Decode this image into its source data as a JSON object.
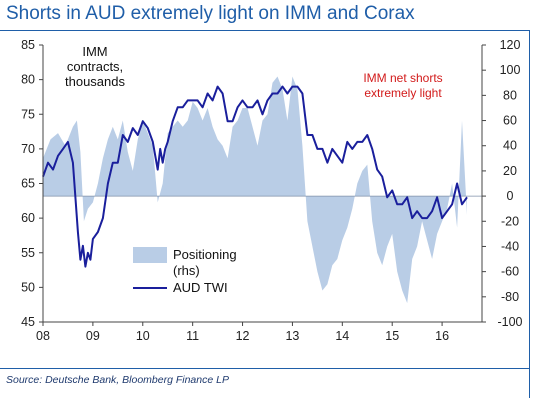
{
  "header": {
    "title": "Shorts in AUD extremely light on IMM and Corax",
    "source": "Source: Deutsche Bank, Bloomberg Finance LP"
  },
  "colors": {
    "title": "#1f5ea8",
    "positioning_fill": "#b9cde6",
    "twi_line": "#1a1f9c",
    "annotation_red": "#d21a1a",
    "axis": "#444444"
  },
  "chart_data": {
    "type": "area",
    "title": "Shorts in AUD extremely light on IMM and Corax",
    "x_range": [
      2008.0,
      2016.8
    ],
    "x_ticks": [
      {
        "value": 2008,
        "label": "08"
      },
      {
        "value": 2009,
        "label": "09"
      },
      {
        "value": 2010,
        "label": "10"
      },
      {
        "value": 2011,
        "label": "11"
      },
      {
        "value": 2012,
        "label": "12"
      },
      {
        "value": 2013,
        "label": "13"
      },
      {
        "value": 2014,
        "label": "14"
      },
      {
        "value": 2015,
        "label": "15"
      },
      {
        "value": 2016,
        "label": "16"
      }
    ],
    "y_left": {
      "range": [
        45,
        85
      ],
      "ticks": [
        45,
        50,
        55,
        60,
        65,
        70,
        75,
        80,
        85
      ]
    },
    "y_right": {
      "range": [
        -100,
        120
      ],
      "ticks": [
        -100,
        -80,
        -60,
        -40,
        -20,
        0,
        20,
        40,
        60,
        80,
        100,
        120
      ]
    },
    "annotations": {
      "left_unit": "IMM\ncontracts,\nthousands",
      "right_note": "IMM net shorts\nextremely light"
    },
    "legend": {
      "placement": "lower-left",
      "items": [
        {
          "label": "Positioning\n(rhs)",
          "kind": "area"
        },
        {
          "label": "AUD TWI",
          "kind": "line"
        }
      ]
    },
    "series": [
      {
        "name": "Positioning",
        "axis": "right",
        "type": "area",
        "x": [
          2008.0,
          2008.15,
          2008.3,
          2008.45,
          2008.6,
          2008.68,
          2008.75,
          2008.82,
          2008.9,
          2009.0,
          2009.1,
          2009.2,
          2009.3,
          2009.4,
          2009.5,
          2009.6,
          2009.7,
          2009.8,
          2009.9,
          2010.0,
          2010.1,
          2010.2,
          2010.3,
          2010.4,
          2010.5,
          2010.6,
          2010.7,
          2010.8,
          2010.9,
          2011.0,
          2011.1,
          2011.2,
          2011.3,
          2011.4,
          2011.5,
          2011.6,
          2011.7,
          2011.8,
          2011.9,
          2012.0,
          2012.1,
          2012.2,
          2012.3,
          2012.4,
          2012.5,
          2012.6,
          2012.7,
          2012.8,
          2012.9,
          2013.0,
          2013.1,
          2013.2,
          2013.3,
          2013.4,
          2013.5,
          2013.6,
          2013.7,
          2013.8,
          2013.9,
          2014.0,
          2014.1,
          2014.2,
          2014.3,
          2014.4,
          2014.5,
          2014.6,
          2014.7,
          2014.8,
          2014.9,
          2015.0,
          2015.1,
          2015.2,
          2015.3,
          2015.4,
          2015.5,
          2015.6,
          2015.7,
          2015.8,
          2015.9,
          2016.0,
          2016.1,
          2016.2,
          2016.3,
          2016.4,
          2016.5
        ],
        "values": [
          30,
          45,
          50,
          40,
          55,
          60,
          35,
          -20,
          -10,
          -5,
          10,
          30,
          45,
          55,
          45,
          60,
          35,
          20,
          45,
          60,
          50,
          40,
          -5,
          10,
          50,
          55,
          60,
          55,
          60,
          75,
          70,
          60,
          70,
          55,
          45,
          40,
          30,
          55,
          60,
          70,
          70,
          55,
          40,
          60,
          65,
          90,
          95,
          85,
          60,
          95,
          85,
          40,
          -20,
          -40,
          -60,
          -75,
          -70,
          -55,
          -50,
          -35,
          -25,
          -10,
          10,
          20,
          25,
          -20,
          -45,
          -55,
          -40,
          -30,
          -60,
          -75,
          -85,
          -50,
          -40,
          -20,
          -35,
          -50,
          -30,
          -20,
          -10,
          10,
          -25,
          60,
          -15
        ]
      },
      {
        "name": "AUD TWI",
        "axis": "left",
        "type": "line",
        "x": [
          2008.0,
          2008.1,
          2008.2,
          2008.3,
          2008.4,
          2008.5,
          2008.6,
          2008.65,
          2008.7,
          2008.75,
          2008.8,
          2008.85,
          2008.9,
          2008.95,
          2009.0,
          2009.1,
          2009.2,
          2009.3,
          2009.4,
          2009.5,
          2009.6,
          2009.7,
          2009.8,
          2009.9,
          2010.0,
          2010.1,
          2010.2,
          2010.3,
          2010.35,
          2010.4,
          2010.45,
          2010.5,
          2010.6,
          2010.7,
          2010.8,
          2010.9,
          2011.0,
          2011.1,
          2011.2,
          2011.3,
          2011.4,
          2011.5,
          2011.6,
          2011.7,
          2011.8,
          2011.9,
          2012.0,
          2012.1,
          2012.2,
          2012.3,
          2012.4,
          2012.5,
          2012.6,
          2012.7,
          2012.8,
          2012.9,
          2013.0,
          2013.1,
          2013.2,
          2013.3,
          2013.4,
          2013.5,
          2013.6,
          2013.7,
          2013.8,
          2013.9,
          2014.0,
          2014.1,
          2014.2,
          2014.3,
          2014.4,
          2014.5,
          2014.6,
          2014.7,
          2014.8,
          2014.9,
          2015.0,
          2015.1,
          2015.2,
          2015.3,
          2015.4,
          2015.5,
          2015.6,
          2015.7,
          2015.8,
          2015.9,
          2016.0,
          2016.1,
          2016.2,
          2016.3,
          2016.4,
          2016.5
        ],
        "values": [
          66,
          68,
          67,
          69,
          70,
          71,
          68,
          63,
          58,
          54,
          56,
          53,
          55,
          54,
          57,
          58,
          60,
          65,
          68,
          68,
          72,
          71,
          73,
          72,
          74,
          73,
          71,
          67,
          70,
          68,
          70,
          71,
          74,
          76,
          76,
          77,
          77,
          77,
          76,
          78,
          77,
          79,
          78,
          74,
          74,
          76,
          77,
          76,
          76,
          77,
          75,
          77,
          78,
          78,
          79,
          78,
          79,
          79,
          78,
          72,
          72,
          70,
          70,
          68,
          70,
          69,
          68,
          71,
          70,
          71,
          71,
          72,
          70,
          67,
          66,
          63,
          64,
          62,
          62,
          63,
          60,
          61,
          60,
          60,
          61,
          63,
          60,
          61,
          62,
          65,
          62,
          63
        ]
      }
    ]
  }
}
